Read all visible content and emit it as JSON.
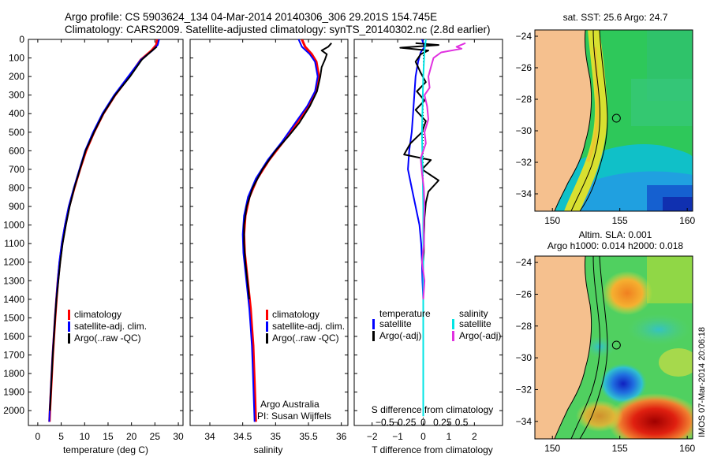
{
  "header": {
    "line1": "Argo profile: CS 5903624_134 04-Mar-2014 20140306_306 29.201S 154.745E",
    "line2": "Climatology: CARS2009. Satellite-adjusted climatology: synTS_20140302.nc (2.8d earlier)"
  },
  "watermark": "IMOS 07-Mar-2014 20:06:18",
  "colors": {
    "climatology": "#ff0000",
    "satellite": "#0000ff",
    "argo": "#000000",
    "sal_satellite": "#00e5e5",
    "sal_argo": "#e030e0",
    "land": "#f5c08e"
  },
  "chart_data": [
    {
      "type": "line",
      "xlabel": "temperature (deg C)",
      "ylim": [
        2080,
        0
      ],
      "xlim": [
        -2,
        31
      ],
      "xticks": [
        0,
        5,
        10,
        15,
        20,
        25,
        30
      ],
      "yticks": [
        0,
        100,
        200,
        300,
        400,
        500,
        600,
        700,
        800,
        900,
        1000,
        1100,
        1200,
        1300,
        1400,
        1500,
        1600,
        1700,
        1800,
        1900,
        2000
      ],
      "legend": [
        "climatology",
        "satellite-adj. clim.",
        "Argo(..raw -QC)"
      ],
      "series": [
        {
          "name": "climatology",
          "color": "#ff0000",
          "points": [
            [
              25.5,
              0
            ],
            [
              25.3,
              30
            ],
            [
              24.3,
              60
            ],
            [
              22,
              110
            ],
            [
              19.5,
              200
            ],
            [
              16.5,
              300
            ],
            [
              14,
              400
            ],
            [
              12,
              500
            ],
            [
              10.3,
              600
            ],
            [
              9,
              700
            ],
            [
              7.8,
              800
            ],
            [
              6.7,
              900
            ],
            [
              5.9,
              1000
            ],
            [
              5.2,
              1100
            ],
            [
              4.7,
              1200
            ],
            [
              4.3,
              1300
            ],
            [
              4.0,
              1400
            ],
            [
              3.7,
              1500
            ],
            [
              3.45,
              1600
            ],
            [
              3.2,
              1700
            ],
            [
              3.0,
              1800
            ],
            [
              2.8,
              1900
            ],
            [
              2.6,
              2000
            ],
            [
              2.5,
              2060
            ]
          ]
        },
        {
          "name": "satellite-adj. clim.",
          "color": "#0000ff",
          "points": [
            [
              25.9,
              0
            ],
            [
              25.6,
              30
            ],
            [
              24.5,
              60
            ],
            [
              22,
              110
            ],
            [
              19.3,
              200
            ],
            [
              16.3,
              300
            ],
            [
              13.8,
              400
            ],
            [
              11.8,
              500
            ],
            [
              10.1,
              600
            ],
            [
              8.9,
              700
            ],
            [
              7.7,
              800
            ],
            [
              6.6,
              900
            ],
            [
              5.8,
              1000
            ],
            [
              5.1,
              1100
            ],
            [
              4.6,
              1200
            ],
            [
              4.25,
              1300
            ],
            [
              3.95,
              1400
            ],
            [
              3.65,
              1500
            ],
            [
              3.4,
              1600
            ],
            [
              3.15,
              1700
            ],
            [
              2.95,
              1800
            ],
            [
              2.75,
              1900
            ],
            [
              2.55,
              2000
            ],
            [
              2.45,
              2060
            ]
          ]
        },
        {
          "name": "Argo(..raw -QC)",
          "color": "#000000",
          "points": [
            [
              25.4,
              40
            ],
            [
              24.2,
              65
            ],
            [
              22.2,
              110
            ],
            [
              19.7,
              200
            ],
            [
              16.5,
              300
            ],
            [
              14,
              400
            ],
            [
              12,
              500
            ],
            [
              10.2,
              600
            ],
            [
              9,
              700
            ],
            [
              7.8,
              800
            ],
            [
              6.8,
              900
            ],
            [
              6,
              1000
            ],
            [
              5.3,
              1100
            ],
            [
              4.8,
              1200
            ],
            [
              4.4,
              1300
            ],
            [
              4.0,
              1400
            ],
            [
              3.7,
              1500
            ],
            [
              3.45,
              1600
            ],
            [
              3.2,
              1700
            ],
            [
              3.0,
              1800
            ],
            [
              2.8,
              1900
            ],
            [
              2.6,
              2000
            ]
          ]
        }
      ]
    },
    {
      "type": "line",
      "xlabel": "salinity",
      "ylim": [
        2080,
        0
      ],
      "xlim": [
        33.7,
        36.1
      ],
      "xticks": [
        34,
        34.5,
        35,
        35.5,
        36
      ],
      "xtick_labels": [
        "34",
        "34.5",
        "35",
        "35.5",
        "36"
      ],
      "legend": [
        "climatology",
        "satellite-adj. clim.",
        "Argo(..raw -QC)"
      ],
      "annotation": [
        "Argo Australia",
        "PI: Susan Wijffels"
      ],
      "series": [
        {
          "name": "climatology",
          "color": "#ff0000",
          "points": [
            [
              35.4,
              0
            ],
            [
              35.45,
              40
            ],
            [
              35.55,
              80
            ],
            [
              35.62,
              120
            ],
            [
              35.66,
              200
            ],
            [
              35.62,
              280
            ],
            [
              35.5,
              360
            ],
            [
              35.32,
              450
            ],
            [
              35.12,
              550
            ],
            [
              34.9,
              650
            ],
            [
              34.72,
              750
            ],
            [
              34.6,
              850
            ],
            [
              34.54,
              950
            ],
            [
              34.52,
              1050
            ],
            [
              34.53,
              1150
            ],
            [
              34.56,
              1250
            ],
            [
              34.59,
              1350
            ],
            [
              34.62,
              1450
            ],
            [
              34.64,
              1550
            ],
            [
              34.66,
              1650
            ],
            [
              34.67,
              1750
            ],
            [
              34.68,
              1850
            ],
            [
              34.69,
              1950
            ],
            [
              34.7,
              2060
            ]
          ]
        },
        {
          "name": "satellite-adj. clim.",
          "color": "#0000ff",
          "points": [
            [
              35.35,
              0
            ],
            [
              35.4,
              40
            ],
            [
              35.52,
              80
            ],
            [
              35.6,
              120
            ],
            [
              35.64,
              200
            ],
            [
              35.6,
              280
            ],
            [
              35.48,
              360
            ],
            [
              35.3,
              450
            ],
            [
              35.1,
              550
            ],
            [
              34.88,
              650
            ],
            [
              34.7,
              750
            ],
            [
              34.58,
              850
            ],
            [
              34.52,
              950
            ],
            [
              34.5,
              1050
            ],
            [
              34.51,
              1150
            ],
            [
              34.54,
              1250
            ],
            [
              34.57,
              1350
            ],
            [
              34.6,
              1450
            ],
            [
              34.62,
              1550
            ],
            [
              34.64,
              1650
            ],
            [
              34.65,
              1750
            ],
            [
              34.66,
              1850
            ],
            [
              34.67,
              1950
            ],
            [
              34.68,
              2060
            ]
          ]
        },
        {
          "name": "Argo(..raw -QC)",
          "color": "#000000",
          "points": [
            [
              35.85,
              20
            ],
            [
              35.8,
              40
            ],
            [
              35.7,
              60
            ],
            [
              35.78,
              80
            ],
            [
              35.75,
              110
            ],
            [
              35.7,
              150
            ],
            [
              35.68,
              200
            ],
            [
              35.63,
              280
            ],
            [
              35.52,
              360
            ],
            [
              35.36,
              450
            ],
            [
              35.2,
              520
            ],
            [
              35.0,
              600
            ],
            [
              34.8,
              700
            ],
            [
              34.65,
              800
            ],
            [
              34.56,
              900
            ],
            [
              34.52,
              1000
            ],
            [
              34.52,
              1100
            ],
            [
              34.54,
              1200
            ],
            [
              34.57,
              1300
            ],
            [
              34.6,
              1400
            ]
          ]
        }
      ]
    },
    {
      "type": "line",
      "xlabel": "T difference from climatology",
      "xlabel_top": "S difference from climatology",
      "ylim": [
        2080,
        0
      ],
      "xlim": [
        -2.7,
        3.1
      ],
      "xticks": [
        -2,
        -1,
        0,
        1,
        2
      ],
      "xtick_labels": [
        "−2",
        "−1",
        "0",
        "1",
        "2"
      ],
      "sticks": [
        -1.5,
        -0.75,
        0,
        0.75,
        1.5
      ],
      "stick_labels": [
        "−0.5",
        "−0.25",
        "0",
        "0.25",
        "0.5"
      ],
      "legend_left_title": "temperature",
      "legend_right_title": "salinity",
      "legend": [
        "satellite",
        "Argo(-adj)",
        "satellite",
        "Argo(-adj)"
      ],
      "series": [
        {
          "name": "satellite",
          "color": "#0000ff",
          "points": [
            [
              -0.05,
              0
            ],
            [
              0.05,
              40
            ],
            [
              -0.1,
              70
            ],
            [
              -0.2,
              120
            ],
            [
              -0.3,
              200
            ],
            [
              -0.35,
              300
            ],
            [
              -0.4,
              400
            ],
            [
              -0.45,
              500
            ],
            [
              -0.55,
              600
            ],
            [
              -0.6,
              700
            ],
            [
              -0.45,
              800
            ],
            [
              -0.3,
              900
            ],
            [
              -0.15,
              1000
            ],
            [
              -0.08,
              1100
            ],
            [
              -0.05,
              1200
            ],
            [
              -0.03,
              1300
            ],
            [
              0,
              1400
            ]
          ]
        },
        {
          "name": "Argo(-adj)",
          "color": "#000000",
          "points": [
            [
              -0.3,
              20
            ],
            [
              0.6,
              30
            ],
            [
              -0.9,
              45
            ],
            [
              0.2,
              60
            ],
            [
              -0.1,
              80
            ],
            [
              -0.3,
              120
            ],
            [
              -0.1,
              180
            ],
            [
              0.1,
              230
            ],
            [
              -0.25,
              280
            ],
            [
              0.05,
              330
            ],
            [
              -0.3,
              380
            ],
            [
              0.1,
              440
            ],
            [
              -0.05,
              500
            ],
            [
              -0.5,
              560
            ],
            [
              -0.75,
              620
            ],
            [
              0.3,
              650
            ],
            [
              -0.05,
              700
            ],
            [
              0.6,
              760
            ],
            [
              0.2,
              820
            ],
            [
              0.1,
              880
            ],
            [
              0.05,
              960
            ],
            [
              0.03,
              1050
            ],
            [
              0.02,
              1150
            ],
            [
              0,
              1200
            ]
          ]
        },
        {
          "name": "satellite",
          "color": "#00e5e5",
          "points": [
            [
              0.1,
              0
            ],
            [
              0.05,
              60
            ],
            [
              0,
              200
            ],
            [
              -0.05,
              500
            ],
            [
              0,
              900
            ],
            [
              0,
              1300
            ],
            [
              0,
              1700
            ],
            [
              0,
              2030
            ]
          ]
        },
        {
          "name": "Argo(-adj)",
          "color": "#e030e0",
          "points": [
            [
              1.65,
              20
            ],
            [
              1.3,
              40
            ],
            [
              1.5,
              50
            ],
            [
              0.7,
              70
            ],
            [
              0.4,
              100
            ],
            [
              0.3,
              150
            ],
            [
              0.2,
              200
            ],
            [
              0.25,
              260
            ],
            [
              0.05,
              300
            ],
            [
              0.15,
              360
            ],
            [
              0.2,
              430
            ],
            [
              0.05,
              500
            ],
            [
              0.1,
              560
            ],
            [
              -0.1,
              640
            ],
            [
              -0.05,
              720
            ],
            [
              0.02,
              800
            ],
            [
              0.05,
              900
            ],
            [
              0.02,
              1000
            ],
            [
              0.03,
              1100
            ],
            [
              -0.05,
              1200
            ],
            [
              0.05,
              1300
            ],
            [
              0,
              1400
            ]
          ]
        }
      ]
    },
    {
      "type": "heatmap",
      "title": "sat. SST: 25.6  Argo: 24.7",
      "xticks": [
        150,
        155,
        160
      ],
      "yticks": [
        -24,
        -26,
        -28,
        -30,
        -32,
        -34
      ],
      "xlim": [
        148.7,
        160.4
      ],
      "ylim": [
        -35.1,
        -23.6
      ],
      "marker": [
        154.745,
        -29.201
      ]
    },
    {
      "type": "heatmap",
      "title_line1": "Altim. SLA: 0.001",
      "title_line2": "Argo h1000: 0.014 h2000: 0.018",
      "xticks": [
        150,
        155,
        160
      ],
      "yticks": [
        -24,
        -26,
        -28,
        -30,
        -32,
        -34
      ],
      "xlim": [
        148.7,
        160.4
      ],
      "ylim": [
        -35.1,
        -23.6
      ],
      "marker": [
        154.745,
        -29.201
      ]
    }
  ]
}
